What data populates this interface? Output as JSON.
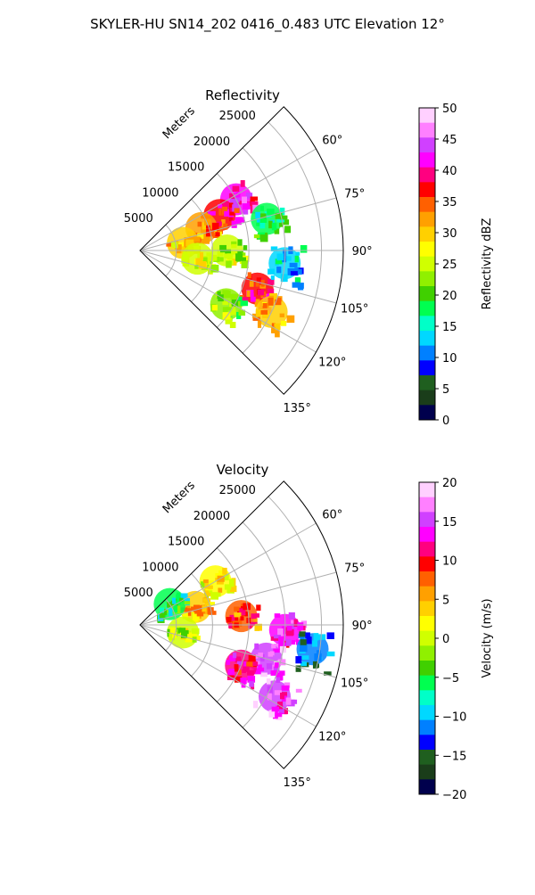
{
  "figure": {
    "title": "SKYLER-HU  SN14_202  0416_0.483 UTC Elevation 12°"
  },
  "panels": [
    {
      "title": "Reflectivity",
      "colorbar_label": "Reflectivity dBZ",
      "colorbar_ticks": [
        "0",
        "5",
        "10",
        "15",
        "20",
        "25",
        "30",
        "35",
        "40",
        "45",
        "50"
      ],
      "range_label": "Meters",
      "range_ticks": [
        "5000",
        "10000",
        "15000",
        "20000",
        "25000"
      ],
      "azimuth_ticks": [
        "60°",
        "75°",
        "90°",
        "105°",
        "120°",
        "135°"
      ]
    },
    {
      "title": "Velocity",
      "colorbar_label": "Velocity (m/s)",
      "colorbar_ticks": [
        "−20",
        "−15",
        "−10",
        "−5",
        "0",
        "5",
        "10",
        "15",
        "20"
      ],
      "range_label": "Meters",
      "range_ticks": [
        "5000",
        "10000",
        "15000",
        "20000",
        "25000"
      ],
      "azimuth_ticks": [
        "60°",
        "75°",
        "90°",
        "105°",
        "120°",
        "135°"
      ]
    }
  ],
  "chart_data": [
    {
      "type": "heatmap",
      "projection": "polar-sector",
      "title": "Reflectivity",
      "variable": "Reflectivity",
      "units": "dBZ",
      "colorbar_range": [
        0,
        50
      ],
      "azimuth_range_deg": [
        45,
        135
      ],
      "range_max_m": 28000,
      "grid": true,
      "colors": [
        "#00004d",
        "#1a3d1a",
        "#1f5f1f",
        "#0000ff",
        "#0080ff",
        "#00d8ff",
        "#00ffc8",
        "#00ff50",
        "#40d000",
        "#90f000",
        "#d0ff00",
        "#ffff00",
        "#ffd000",
        "#ffa000",
        "#ff6000",
        "#ff0000",
        "#ff0080",
        "#ff00ff",
        "#d040ff",
        "#ff80ff",
        "#ffd0ff"
      ],
      "echo_cells": [
        {
          "az": 62,
          "r": 15000,
          "value": 42
        },
        {
          "az": 66,
          "r": 12000,
          "value": 38
        },
        {
          "az": 70,
          "r": 9000,
          "value": 33
        },
        {
          "az": 80,
          "r": 6000,
          "value": 30
        },
        {
          "az": 90,
          "r": 12000,
          "value": 24
        },
        {
          "az": 98,
          "r": 8000,
          "value": 26
        },
        {
          "az": 108,
          "r": 17000,
          "value": 38
        },
        {
          "az": 115,
          "r": 20000,
          "value": 30
        },
        {
          "az": 122,
          "r": 14000,
          "value": 22
        },
        {
          "az": 76,
          "r": 18000,
          "value": 18
        },
        {
          "az": 95,
          "r": 20000,
          "value": 14
        }
      ]
    },
    {
      "type": "heatmap",
      "projection": "polar-sector",
      "title": "Velocity",
      "variable": "Velocity",
      "units": "m/s",
      "colorbar_range": [
        -20,
        20
      ],
      "azimuth_range_deg": [
        45,
        135
      ],
      "range_max_m": 28000,
      "grid": true,
      "colors": [
        "#00004d",
        "#1a3d1a",
        "#1f5f1f",
        "#0000ff",
        "#0080ff",
        "#00d8ff",
        "#00ffc8",
        "#00ff50",
        "#40d000",
        "#90f000",
        "#d0ff00",
        "#ffff00",
        "#ffd000",
        "#ffa000",
        "#ff6000",
        "#ff0000",
        "#ff0080",
        "#ff00ff",
        "#d040ff",
        "#ff80ff",
        "#ffd0ff"
      ],
      "echo_cells": [
        {
          "az": 60,
          "r": 12000,
          "value": 2
        },
        {
          "az": 72,
          "r": 8000,
          "value": 4
        },
        {
          "az": 85,
          "r": 14000,
          "value": 8
        },
        {
          "az": 92,
          "r": 20000,
          "value": 14
        },
        {
          "az": 98,
          "r": 24000,
          "value": -12
        },
        {
          "az": 105,
          "r": 18000,
          "value": 16
        },
        {
          "az": 112,
          "r": 15000,
          "value": 11
        },
        {
          "az": 118,
          "r": 21000,
          "value": 15
        },
        {
          "az": 100,
          "r": 6000,
          "value": 0
        },
        {
          "az": 55,
          "r": 5000,
          "value": -6
        }
      ]
    }
  ]
}
